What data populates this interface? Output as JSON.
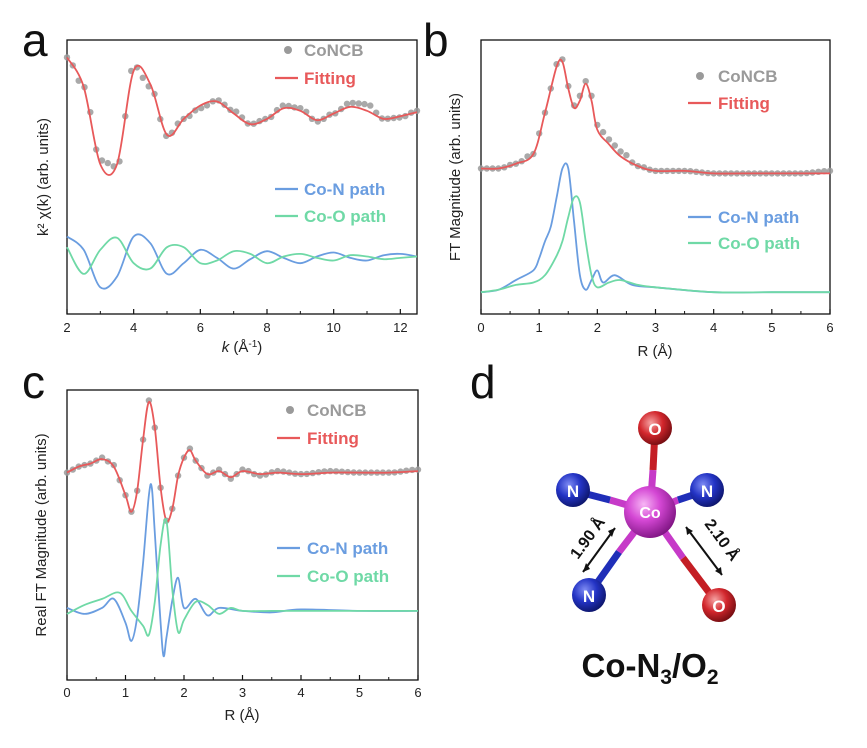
{
  "colors": {
    "data": "#9a9a9a",
    "fitting": "#e8595a",
    "co_n": "#6a9de0",
    "co_o": "#6fd9a6",
    "axis": "#111111",
    "co_atom": "#c63ac8",
    "n_atom": "#1f2eb8",
    "o_atom": "#c41e24"
  },
  "chart_data": [
    {
      "panel": "a",
      "type": "line",
      "xlabel_italic": "k",
      "xlabel_rest": " (Å",
      "xlabel_sup": "-1",
      "xlabel_close": ")",
      "ylabel": "k² χ(k) (arb. units)",
      "xlim": [
        2,
        12.5
      ],
      "xticks": [
        "2",
        "4",
        "6",
        "8",
        "10",
        "12"
      ],
      "legend": [
        "CoNCB",
        "Fitting",
        "Co-N path",
        "Co-O path"
      ],
      "series": [
        {
          "name": "CoNCB",
          "style": "points",
          "x": [
            2.0,
            2.5,
            3.0,
            3.5,
            4.0,
            4.5,
            5.0,
            5.5,
            6.0,
            6.5,
            7.0,
            7.5,
            8.0,
            8.5,
            9.0,
            9.5,
            10.0,
            10.5,
            11.0,
            11.5,
            12.0,
            12.5
          ],
          "y": [
            0.92,
            0.7,
            0.15,
            0.1,
            0.86,
            0.7,
            0.33,
            0.46,
            0.54,
            0.6,
            0.52,
            0.42,
            0.46,
            0.56,
            0.54,
            0.44,
            0.5,
            0.58,
            0.57,
            0.46,
            0.47,
            0.52
          ]
        },
        {
          "name": "Fitting",
          "style": "line",
          "x": [
            2.0,
            2.5,
            3.0,
            3.5,
            4.0,
            4.5,
            5.0,
            5.5,
            6.0,
            6.5,
            7.0,
            7.5,
            8.0,
            8.5,
            9.0,
            9.5,
            10.0,
            10.5,
            11.0,
            11.5,
            12.0,
            12.5
          ],
          "y": [
            0.92,
            0.7,
            0.12,
            0.12,
            0.82,
            0.72,
            0.34,
            0.46,
            0.56,
            0.59,
            0.5,
            0.42,
            0.46,
            0.54,
            0.52,
            0.45,
            0.5,
            0.55,
            0.52,
            0.46,
            0.48,
            0.51
          ]
        },
        {
          "name": "Co-N path",
          "style": "line",
          "x": [
            2.0,
            2.5,
            3.0,
            3.5,
            4.0,
            4.5,
            5.0,
            5.5,
            6.0,
            6.5,
            7.0,
            7.5,
            8.0,
            8.5,
            9.0,
            9.5,
            10.0,
            10.5,
            11.0,
            11.5,
            12.0,
            12.5
          ],
          "y": [
            -0.42,
            -0.52,
            -0.8,
            -0.72,
            -0.42,
            -0.47,
            -0.7,
            -0.62,
            -0.52,
            -0.58,
            -0.66,
            -0.59,
            -0.53,
            -0.58,
            -0.62,
            -0.57,
            -0.54,
            -0.58,
            -0.6,
            -0.56,
            -0.55,
            -0.57
          ]
        },
        {
          "name": "Co-O path",
          "style": "line",
          "x": [
            2.0,
            2.5,
            3.0,
            3.5,
            4.0,
            4.5,
            5.0,
            5.5,
            6.0,
            6.5,
            7.0,
            7.5,
            8.0,
            8.5,
            9.0,
            9.5,
            10.0,
            10.5,
            11.0,
            11.5,
            12.0,
            12.5
          ],
          "y": [
            -0.5,
            -0.7,
            -0.52,
            -0.43,
            -0.62,
            -0.66,
            -0.5,
            -0.5,
            -0.62,
            -0.6,
            -0.53,
            -0.55,
            -0.62,
            -0.57,
            -0.55,
            -0.58,
            -0.6,
            -0.56,
            -0.57,
            -0.59,
            -0.58,
            -0.57
          ]
        }
      ]
    },
    {
      "panel": "b",
      "type": "line",
      "xlabel": "R (Å)",
      "ylabel": "FT Magnitude (arb. units)",
      "xlim": [
        0,
        6
      ],
      "xticks": [
        "0",
        "1",
        "2",
        "3",
        "4",
        "5",
        "6"
      ],
      "legend": [
        "CoNCB",
        "Fitting",
        "Co-N path",
        "Co-O path"
      ],
      "series": [
        {
          "name": "CoNCB",
          "style": "points",
          "x": [
            0.0,
            0.3,
            0.6,
            0.9,
            1.1,
            1.3,
            1.4,
            1.5,
            1.6,
            1.7,
            1.8,
            1.9,
            2.0,
            2.2,
            2.4,
            2.7,
            3.0,
            3.5,
            4.0,
            4.5,
            5.0,
            5.5,
            6.0
          ],
          "y": [
            0.52,
            0.52,
            0.54,
            0.58,
            0.75,
            0.95,
            0.97,
            0.86,
            0.78,
            0.82,
            0.88,
            0.82,
            0.7,
            0.64,
            0.59,
            0.53,
            0.51,
            0.51,
            0.5,
            0.5,
            0.5,
            0.5,
            0.51
          ]
        },
        {
          "name": "Fitting",
          "style": "line",
          "x": [
            0.0,
            0.3,
            0.6,
            0.9,
            1.1,
            1.3,
            1.4,
            1.5,
            1.6,
            1.7,
            1.8,
            1.9,
            2.0,
            2.2,
            2.4,
            2.7,
            3.0,
            3.5,
            4.0,
            4.5,
            5.0,
            5.5,
            6.0
          ],
          "y": [
            0.52,
            0.52,
            0.54,
            0.58,
            0.75,
            0.94,
            0.96,
            0.85,
            0.77,
            0.8,
            0.87,
            0.8,
            0.68,
            0.62,
            0.57,
            0.53,
            0.51,
            0.51,
            0.5,
            0.5,
            0.5,
            0.5,
            0.5
          ]
        },
        {
          "name": "Co-N path",
          "style": "line",
          "x": [
            0.0,
            0.3,
            0.6,
            0.9,
            1.0,
            1.1,
            1.2,
            1.3,
            1.4,
            1.5,
            1.6,
            1.7,
            1.8,
            1.9,
            2.0,
            2.1,
            2.3,
            2.6,
            3.0,
            4.0,
            5.0,
            6.0
          ],
          "y": [
            0.01,
            0.02,
            0.06,
            0.1,
            0.15,
            0.22,
            0.28,
            0.4,
            0.52,
            0.52,
            0.3,
            0.08,
            0.02,
            0.06,
            0.1,
            0.05,
            0.08,
            0.04,
            0.03,
            0.01,
            0.01,
            0.01
          ]
        },
        {
          "name": "Co-O path",
          "style": "line",
          "x": [
            0.0,
            0.3,
            0.6,
            0.9,
            1.1,
            1.3,
            1.4,
            1.5,
            1.6,
            1.7,
            1.8,
            1.9,
            2.0,
            2.2,
            2.4,
            2.7,
            3.0,
            4.0,
            5.0,
            6.0
          ],
          "y": [
            0.01,
            0.02,
            0.04,
            0.05,
            0.08,
            0.16,
            0.22,
            0.32,
            0.4,
            0.38,
            0.22,
            0.08,
            0.03,
            0.05,
            0.06,
            0.04,
            0.03,
            0.01,
            0.01,
            0.01
          ]
        }
      ]
    },
    {
      "panel": "c",
      "type": "line",
      "xlabel": "R (Å)",
      "ylabel": "Real FT Magnitude (arb. units)",
      "xlim": [
        0,
        6
      ],
      "xticks": [
        "0",
        "1",
        "2",
        "3",
        "4",
        "5",
        "6"
      ],
      "legend": [
        "CoNCB",
        "Fitting",
        "Co-N path",
        "Co-O path"
      ],
      "series": [
        {
          "name": "CoNCB",
          "style": "points",
          "x": [
            0.0,
            0.2,
            0.4,
            0.6,
            0.8,
            1.0,
            1.1,
            1.2,
            1.3,
            1.4,
            1.5,
            1.6,
            1.7,
            1.8,
            1.9,
            2.0,
            2.1,
            2.2,
            2.4,
            2.6,
            2.8,
            3.0,
            3.3,
            3.6,
            4.0,
            4.5,
            5.0,
            5.5,
            6.0
          ],
          "y": [
            0.5,
            0.54,
            0.56,
            0.6,
            0.55,
            0.35,
            0.24,
            0.38,
            0.72,
            0.98,
            0.8,
            0.4,
            0.18,
            0.26,
            0.48,
            0.6,
            0.66,
            0.58,
            0.48,
            0.52,
            0.46,
            0.52,
            0.48,
            0.51,
            0.49,
            0.51,
            0.5,
            0.5,
            0.52
          ]
        },
        {
          "name": "Fitting",
          "style": "line",
          "x": [
            0.0,
            0.2,
            0.4,
            0.6,
            0.8,
            1.0,
            1.1,
            1.2,
            1.3,
            1.4,
            1.5,
            1.6,
            1.7,
            1.8,
            1.9,
            2.0,
            2.1,
            2.2,
            2.4,
            2.6,
            2.8,
            3.0,
            3.3,
            3.6,
            4.0,
            4.5,
            5.0,
            5.5,
            6.0
          ],
          "y": [
            0.5,
            0.54,
            0.56,
            0.59,
            0.54,
            0.35,
            0.24,
            0.38,
            0.72,
            0.97,
            0.8,
            0.4,
            0.18,
            0.26,
            0.48,
            0.6,
            0.65,
            0.58,
            0.49,
            0.51,
            0.47,
            0.51,
            0.49,
            0.5,
            0.49,
            0.5,
            0.5,
            0.5,
            0.51
          ]
        },
        {
          "name": "Co-N path",
          "style": "line",
          "x": [
            0.0,
            0.3,
            0.6,
            0.8,
            1.0,
            1.1,
            1.2,
            1.3,
            1.4,
            1.45,
            1.5,
            1.6,
            1.65,
            1.7,
            1.8,
            1.9,
            2.0,
            2.2,
            2.4,
            2.6,
            3.0,
            3.5,
            4.0,
            5.0,
            6.0
          ],
          "y": [
            -0.4,
            -0.44,
            -0.4,
            -0.34,
            -0.5,
            -0.62,
            -0.46,
            -0.1,
            0.35,
            0.4,
            0.1,
            -0.5,
            -0.72,
            -0.6,
            -0.35,
            -0.2,
            -0.4,
            -0.34,
            -0.45,
            -0.4,
            -0.42,
            -0.43,
            -0.41,
            -0.42,
            -0.42
          ]
        },
        {
          "name": "Co-O path",
          "style": "line",
          "x": [
            0.0,
            0.3,
            0.6,
            0.9,
            1.1,
            1.3,
            1.4,
            1.5,
            1.6,
            1.7,
            1.8,
            1.9,
            2.0,
            2.2,
            2.4,
            2.6,
            2.8,
            3.0,
            3.5,
            4.0,
            5.0,
            6.0
          ],
          "y": [
            -0.44,
            -0.38,
            -0.34,
            -0.3,
            -0.42,
            -0.52,
            -0.58,
            -0.36,
            0.02,
            0.18,
            -0.28,
            -0.56,
            -0.48,
            -0.36,
            -0.38,
            -0.44,
            -0.4,
            -0.42,
            -0.42,
            -0.42,
            -0.42,
            -0.42
          ]
        }
      ]
    }
  ],
  "structure": {
    "panel": "d",
    "center": "Co",
    "ligand_n": "N",
    "ligand_o": "O",
    "bond_n": "1.90 Å",
    "bond_o": "2.10 Å",
    "formula_main": "Co-N",
    "formula_sub1": "3",
    "formula_mid": "/O",
    "formula_sub2": "2"
  }
}
